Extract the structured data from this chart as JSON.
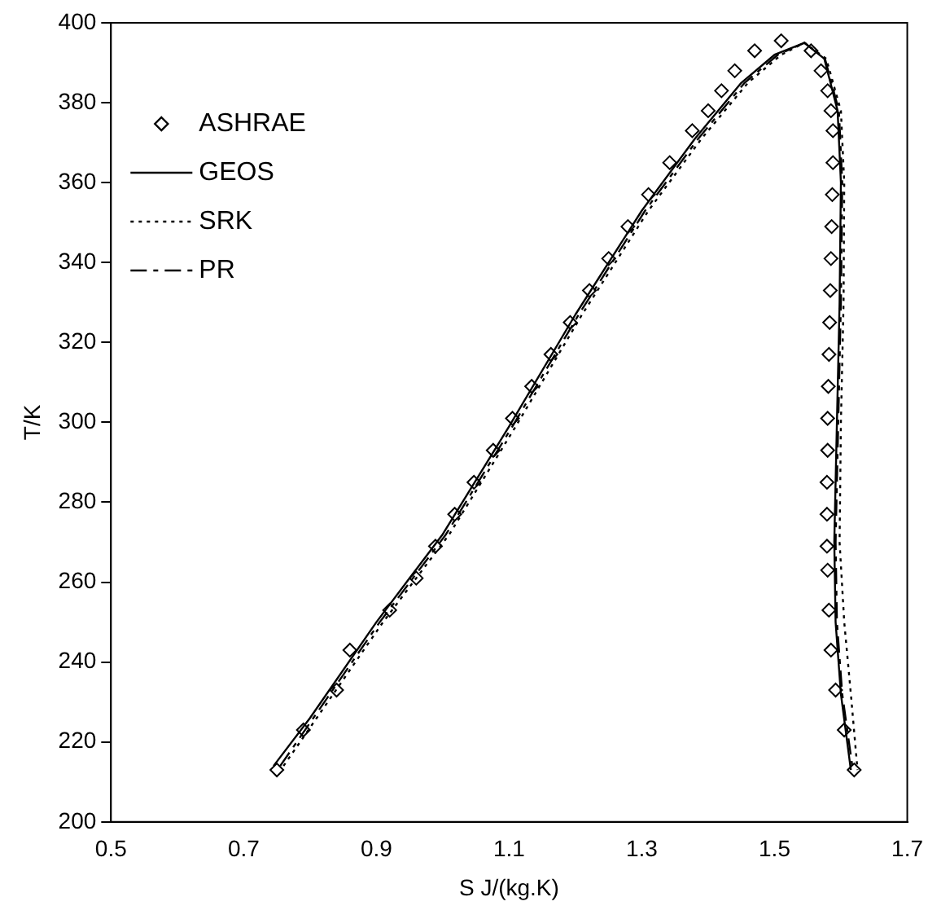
{
  "chart_data": {
    "type": "line",
    "xlabel": "S J/(kg.K)",
    "ylabel": "T/K",
    "xlim": [
      0.5,
      1.7
    ],
    "xticks": [
      0.5,
      0.7,
      0.9,
      1.1,
      1.3,
      1.5,
      1.7
    ],
    "ylim": [
      200,
      400
    ],
    "yticks": [
      200,
      220,
      240,
      260,
      280,
      300,
      320,
      340,
      360,
      380,
      400
    ],
    "grid": false,
    "legend": "top left",
    "series": [
      {
        "name": "ASHRAE",
        "type": "scatter",
        "marker": "diamond",
        "color": "#000000",
        "x": [
          0.75,
          0.79,
          0.84,
          0.86,
          0.92,
          0.96,
          0.989,
          1.018,
          1.047,
          1.076,
          1.105,
          1.134,
          1.163,
          1.192,
          1.221,
          1.25,
          1.279,
          1.31,
          1.342,
          1.376,
          1.4,
          1.42,
          1.44,
          1.47,
          1.51,
          1.555,
          1.57,
          1.58,
          1.585,
          1.588,
          1.588,
          1.587,
          1.586,
          1.585,
          1.584,
          1.583,
          1.582,
          1.581,
          1.58,
          1.58,
          1.579,
          1.579,
          1.579,
          1.58,
          1.582,
          1.585,
          1.592,
          1.605,
          1.62
        ],
        "values": [
          213,
          223,
          233,
          243,
          253,
          261,
          269,
          277,
          285,
          293,
          301,
          309,
          317,
          325,
          333,
          341,
          349,
          357,
          365,
          373,
          378,
          383,
          388,
          393,
          395.5,
          393,
          388,
          383,
          378,
          373,
          365,
          357,
          349,
          341,
          333,
          325,
          317,
          309,
          301,
          293,
          285,
          277,
          269,
          263,
          253,
          243,
          233,
          223,
          213
        ]
      },
      {
        "name": "GEOS",
        "marker": "none",
        "line_style": "solid",
        "color": "#000000",
        "x": [
          0.745,
          0.8,
          0.9,
          1.0,
          1.1,
          1.2,
          1.3,
          1.38,
          1.45,
          1.5,
          1.545,
          1.575,
          1.595,
          1.6,
          1.598,
          1.594,
          1.59,
          1.592,
          1.6,
          1.615
        ],
        "values": [
          214,
          226,
          250,
          272,
          299,
          327,
          353,
          371,
          385,
          392,
          395,
          391,
          378,
          360,
          330,
          300,
          270,
          250,
          232,
          213
        ]
      },
      {
        "name": "SRK",
        "marker": "none",
        "line_style": "dotted",
        "color": "#000000",
        "x": [
          0.76,
          0.81,
          0.91,
          1.01,
          1.11,
          1.21,
          1.31,
          1.39,
          1.46,
          1.51,
          1.545,
          1.578,
          1.6,
          1.605,
          1.604,
          1.6,
          1.598,
          1.605,
          1.615,
          1.625
        ],
        "values": [
          214,
          226,
          250,
          272,
          299,
          327,
          353,
          371,
          385,
          392,
          395,
          391,
          378,
          360,
          330,
          300,
          270,
          250,
          232,
          213
        ]
      },
      {
        "name": "PR",
        "marker": "none",
        "line_style": "dashed",
        "color": "#000000",
        "x": [
          0.755,
          0.805,
          0.905,
          1.005,
          1.105,
          1.205,
          1.305,
          1.385,
          1.455,
          1.505,
          1.545,
          1.576,
          1.597,
          1.602,
          1.6,
          1.596,
          1.592,
          1.594,
          1.602,
          1.618
        ],
        "values": [
          214,
          226,
          250,
          272,
          299,
          327,
          353,
          371,
          385,
          392,
          395,
          391,
          378,
          360,
          330,
          300,
          270,
          250,
          232,
          213
        ]
      }
    ]
  }
}
